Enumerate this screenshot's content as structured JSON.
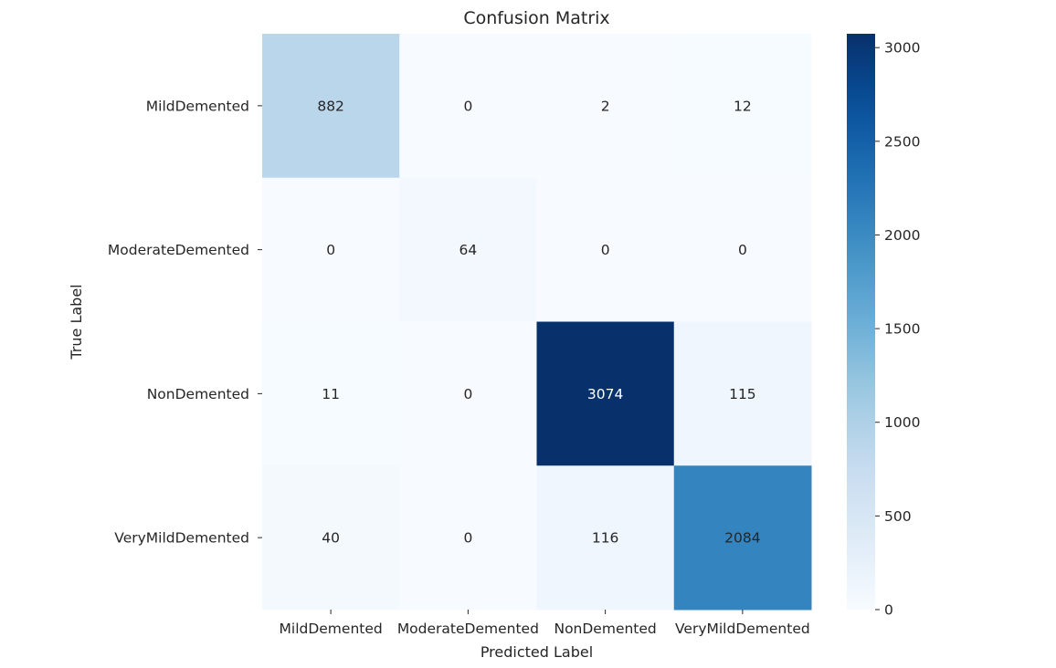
{
  "chart_data": {
    "type": "heatmap",
    "title": "Confusion Matrix",
    "xlabel": "Predicted Label",
    "ylabel": "True Label",
    "x_categories": [
      "MildDemented",
      "ModerateDemented",
      "NonDemented",
      "VeryMildDemented"
    ],
    "y_categories": [
      "MildDemented",
      "ModerateDemented",
      "NonDemented",
      "VeryMildDemented"
    ],
    "values": [
      [
        882,
        0,
        2,
        12
      ],
      [
        0,
        64,
        0,
        0
      ],
      [
        11,
        0,
        3074,
        115
      ],
      [
        40,
        0,
        116,
        2084
      ]
    ],
    "colormap": "Blues",
    "colorbar": {
      "range": [
        0,
        3074
      ],
      "ticks": [
        0,
        500,
        1000,
        1500,
        2000,
        2500,
        3000
      ]
    }
  }
}
